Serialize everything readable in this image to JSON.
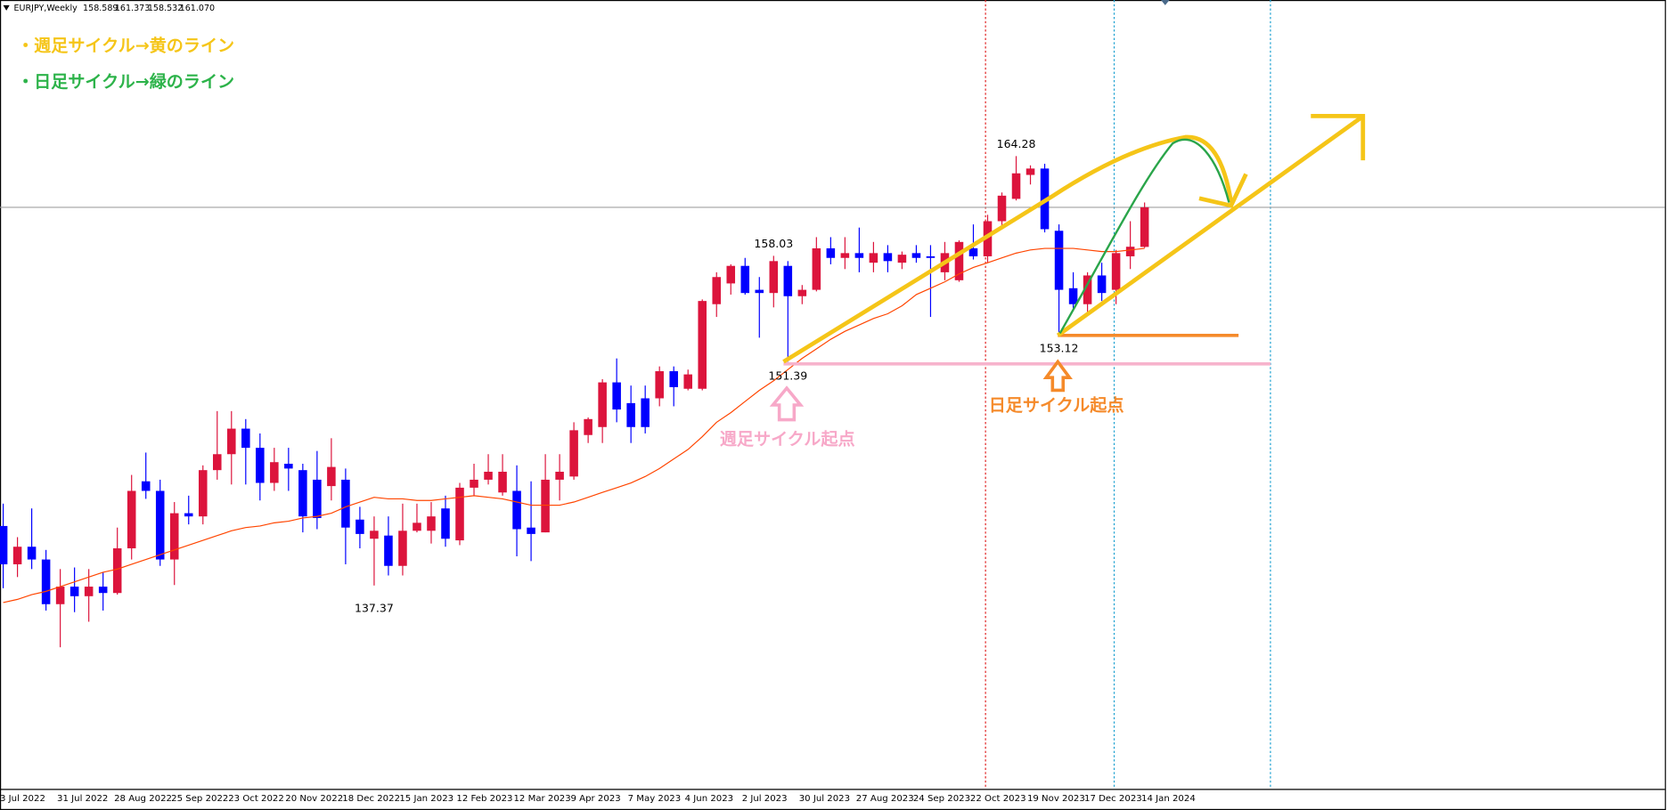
{
  "chart_data": {
    "type": "candlestick",
    "header": {
      "symbol": "EURJPY,Weekly",
      "ohlc": [
        "158.589",
        "161.373",
        "158.532",
        "161.070"
      ]
    },
    "annotations": [
      "・週足サイクル→黄のライン",
      "・日足サイクル→緑のライン",
      "週足サイクル起点",
      "日足サイクル起点"
    ],
    "categories": [
      "3 Jul 2022",
      null,
      null,
      null,
      "31 Jul 2022",
      null,
      null,
      null,
      "28 Aug 2022",
      null,
      null,
      null,
      "25 Sep 2022",
      null,
      null,
      null,
      "23 Oct 2022",
      null,
      null,
      null,
      "20 Nov 2022",
      null,
      null,
      null,
      "18 Dec 2022",
      null,
      null,
      null,
      "15 Jan 2023",
      null,
      null,
      null,
      "12 Feb 2023",
      null,
      null,
      null,
      "12 Mar 2023",
      null,
      null,
      null,
      "9 Apr 2023",
      null,
      null,
      null,
      "7 May 2023",
      null,
      null,
      null,
      "4 Jun 2023",
      null,
      null,
      null,
      "2 Jul 2023",
      null,
      null,
      null,
      "30 Jul 2023",
      null,
      null,
      null,
      "27 Aug 2023",
      null,
      null,
      null,
      "24 Sep 2023",
      null,
      null,
      null,
      "22 Oct 2023",
      null,
      null,
      null,
      "19 Nov 2023",
      null,
      null,
      null,
      "17 Dec 2023",
      null,
      null,
      null,
      "14 Jan 2024"
    ],
    "open": [
      141.1,
      138.7,
      139.8,
      139.0,
      136.2,
      137.3,
      136.7,
      137.3,
      136.9,
      139.7,
      143.9,
      143.3,
      139.0,
      141.9,
      141.7,
      144.6,
      145.6,
      147.2,
      146.0,
      143.8,
      145.0,
      144.6,
      144.0,
      143.6,
      144.0,
      141.5,
      140.3,
      140.5,
      138.6,
      140.8,
      140.8,
      142.2,
      140.2,
      143.5,
      144.0,
      143.2,
      143.3,
      141.0,
      140.7,
      144.0,
      144.2,
      146.8,
      147.3,
      150.1,
      148.8,
      149.1,
      149.1,
      150.8,
      149.7,
      149.7,
      155.0,
      156.3,
      157.4,
      155.9,
      155.7,
      157.4,
      155.5,
      155.9,
      158.5,
      157.9,
      158.2,
      157.6,
      158.2,
      157.6,
      158.2,
      158.0,
      157.0,
      156.5,
      158.5,
      158.0,
      160.2,
      161.6,
      163.1,
      163.5,
      159.6,
      156.0,
      155.0,
      156.8,
      155.9,
      158.0,
      158.589
    ],
    "high": [
      142.5,
      140.4,
      142.2,
      139.6,
      138.4,
      138.5,
      138.4,
      138.2,
      141.0,
      144.3,
      145.7,
      144.0,
      142.6,
      143.0,
      144.9,
      148.3,
      148.3,
      147.8,
      146.9,
      146.0,
      146.0,
      145.0,
      145.8,
      146.6,
      144.7,
      142.3,
      141.7,
      141.7,
      142.5,
      142.5,
      142.6,
      143.0,
      143.8,
      145.0,
      145.6,
      145.6,
      144.9,
      143.9,
      145.6,
      145.6,
      147.6,
      147.9,
      150.3,
      151.6,
      149.9,
      149.9,
      151.1,
      151.1,
      150.9,
      155.3,
      157.0,
      157.5,
      157.9,
      156.7,
      158.03,
      157.7,
      156.2,
      159.2,
      159.2,
      159.2,
      159.8,
      158.9,
      158.7,
      158.3,
      158.7,
      158.7,
      158.9,
      159.0,
      160.0,
      160.6,
      162.0,
      164.28,
      163.7,
      163.8,
      160.0,
      157.0,
      157.0,
      157.6,
      158.4,
      160.2,
      161.373
    ],
    "low": [
      137.2,
      137.9,
      138.4,
      135.8,
      133.5,
      135.7,
      135.1,
      135.8,
      136.8,
      139.0,
      142.8,
      138.6,
      137.4,
      141.2,
      141.2,
      144.0,
      143.7,
      143.7,
      142.7,
      143.3,
      143.3,
      140.7,
      140.9,
      142.7,
      138.7,
      139.7,
      137.37,
      138.0,
      138.0,
      140.7,
      140.0,
      139.8,
      139.9,
      143.0,
      143.7,
      143.0,
      139.2,
      138.9,
      140.7,
      142.7,
      144.0,
      146.3,
      146.3,
      147.6,
      146.3,
      146.9,
      148.6,
      148.6,
      149.6,
      149.6,
      154.2,
      155.6,
      155.6,
      152.9,
      154.8,
      151.39,
      155.0,
      155.8,
      157.5,
      157.2,
      157.0,
      157.0,
      157.0,
      157.2,
      157.6,
      154.2,
      156.5,
      156.4,
      157.8,
      157.6,
      159.9,
      161.5,
      162.5,
      159.5,
      153.12,
      154.6,
      154.3,
      155.2,
      155.0,
      157.2,
      158.532
    ],
    "close": [
      138.7,
      139.8,
      139.0,
      136.2,
      137.3,
      136.7,
      137.3,
      136.9,
      139.7,
      143.3,
      143.3,
      139.0,
      141.9,
      141.7,
      144.6,
      145.6,
      147.2,
      146.0,
      143.8,
      145.1,
      144.7,
      141.7,
      141.6,
      144.8,
      141.0,
      140.6,
      140.8,
      138.6,
      140.8,
      141.3,
      141.7,
      140.3,
      143.5,
      144.0,
      144.5,
      144.5,
      140.9,
      140.6,
      144.0,
      144.5,
      147.1,
      147.8,
      150.1,
      148.4,
      147.3,
      147.3,
      150.8,
      149.8,
      150.6,
      155.2,
      156.7,
      157.4,
      155.7,
      155.7,
      157.7,
      155.5,
      155.9,
      158.5,
      157.9,
      158.2,
      157.9,
      158.2,
      157.7,
      158.1,
      157.9,
      157.9,
      158.2,
      158.9,
      158.0,
      160.2,
      161.8,
      163.2,
      163.5,
      159.7,
      155.9,
      155.0,
      156.8,
      155.7,
      158.2,
      158.6,
      161.07
    ],
    "colors": {
      "up": "#dc143c",
      "down": "#0000ff"
    },
    "ma": {
      "color": "#ff4500",
      "values": [
        136.3,
        136.5,
        136.8,
        137.0,
        137.3,
        137.6,
        137.9,
        138.2,
        138.4,
        138.7,
        139.0,
        139.3,
        139.6,
        139.9,
        140.2,
        140.5,
        140.8,
        141.0,
        141.1,
        141.3,
        141.4,
        141.6,
        141.7,
        141.9,
        142.3,
        142.6,
        142.9,
        142.8,
        142.8,
        142.7,
        142.7,
        142.8,
        142.9,
        143.0,
        142.9,
        142.8,
        142.6,
        142.4,
        142.4,
        142.4,
        142.6,
        142.9,
        143.2,
        143.5,
        143.8,
        144.2,
        144.7,
        145.3,
        145.9,
        146.7,
        147.6,
        148.2,
        148.9,
        149.6,
        150.2,
        150.9,
        151.6,
        152.2,
        152.8,
        153.3,
        153.7,
        154.1,
        154.4,
        154.9,
        155.6,
        156.0,
        156.4,
        156.9,
        157.3,
        157.6,
        157.9,
        158.2,
        158.4,
        158.5,
        158.5,
        158.5,
        158.4,
        158.3,
        158.3,
        158.4,
        158.5
      ]
    }
  }
}
